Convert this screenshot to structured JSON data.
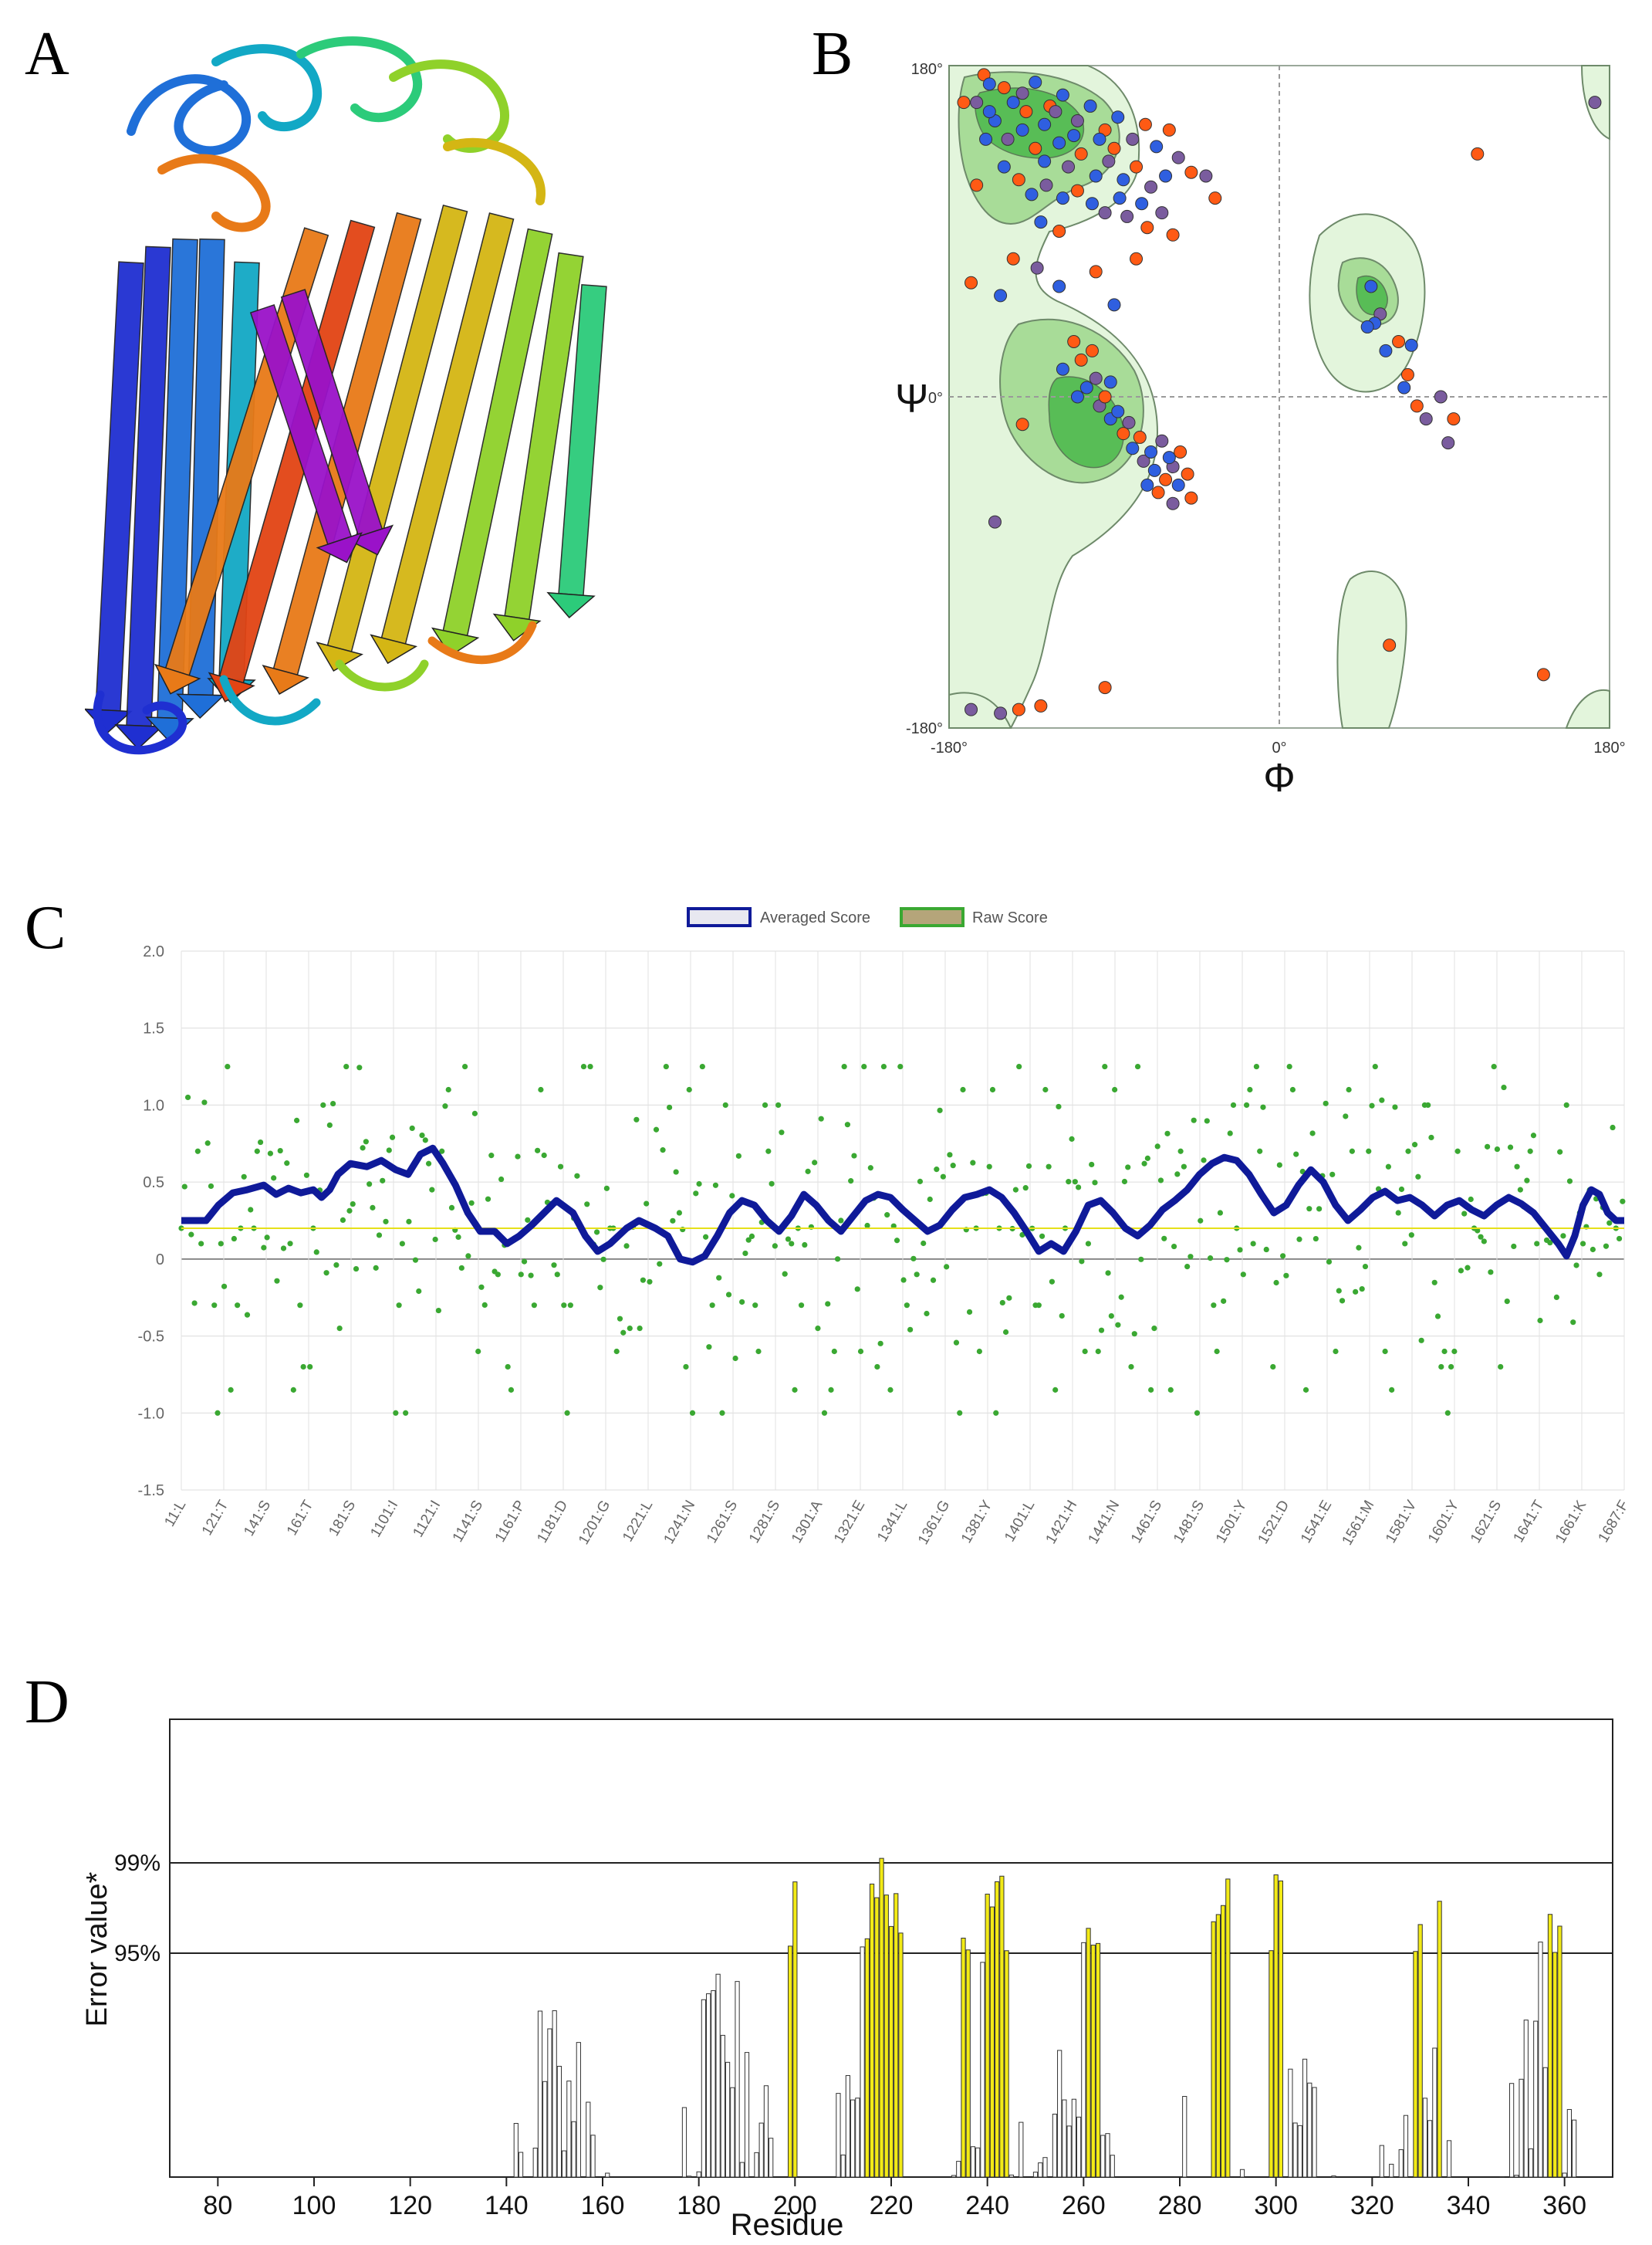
{
  "panels": {
    "a": {
      "letter": "A"
    },
    "b": {
      "letter": "B"
    },
    "c": {
      "letter": "C"
    },
    "d": {
      "letter": "D"
    }
  },
  "colors": {
    "helix_gradient": [
      "#1f2fd1",
      "#1f6fd8",
      "#12a8c5",
      "#2ccb7a",
      "#8fd12a",
      "#d4b614",
      "#e87a18",
      "#e24414",
      "#9a12c9"
    ],
    "rama_light": "#e3f5dc",
    "rama_mid": "#a8dc98",
    "rama_core": "#58bd56",
    "rama_edge": "#6e8a6a",
    "dot_blue": "#2f5fe0",
    "dot_orange": "#ff5a14",
    "dot_purple": "#7a5c9e",
    "avg_line": "#0f1a99",
    "raw_dot": "#3aa832",
    "threshold": "#e6e01a",
    "bar_normal": "#ffffff",
    "bar_highlight": "#f2ea16"
  },
  "ramachandran": {
    "x_tick_labels": [
      "-180°",
      "0°",
      "180°"
    ],
    "y_tick_labels": [
      "180°",
      "0°",
      "-180°"
    ],
    "x_symbol": "Φ",
    "y_symbol": "Ψ",
    "x_range": [
      -180,
      180
    ],
    "y_range": [
      -180,
      180
    ],
    "points": [
      {
        "phi": -161,
        "psi": 175,
        "c": "o"
      },
      {
        "phi": -158,
        "psi": 170,
        "c": "b"
      },
      {
        "phi": -150,
        "psi": 168,
        "c": "o"
      },
      {
        "phi": -145,
        "psi": 160,
        "c": "b"
      },
      {
        "phi": -140,
        "psi": 165,
        "c": "p"
      },
      {
        "phi": -133,
        "psi": 171,
        "c": "b"
      },
      {
        "phi": -125,
        "psi": 158,
        "c": "o"
      },
      {
        "phi": -118,
        "psi": 164,
        "c": "b"
      },
      {
        "phi": -110,
        "psi": 150,
        "c": "p"
      },
      {
        "phi": -103,
        "psi": 158,
        "c": "b"
      },
      {
        "phi": -95,
        "psi": 145,
        "c": "o"
      },
      {
        "phi": -88,
        "psi": 152,
        "c": "b"
      },
      {
        "phi": -80,
        "psi": 140,
        "c": "p"
      },
      {
        "phi": -73,
        "psi": 148,
        "c": "o"
      },
      {
        "phi": -67,
        "psi": 136,
        "c": "b"
      },
      {
        "phi": -60,
        "psi": 145,
        "c": "o"
      },
      {
        "phi": -55,
        "psi": 130,
        "c": "p"
      },
      {
        "phi": -48,
        "psi": 122,
        "c": "o"
      },
      {
        "phi": -155,
        "psi": 150,
        "c": "b"
      },
      {
        "phi": -148,
        "psi": 140,
        "c": "p"
      },
      {
        "phi": -140,
        "psi": 145,
        "c": "b"
      },
      {
        "phi": -133,
        "psi": 135,
        "c": "o"
      },
      {
        "phi": -128,
        "psi": 128,
        "c": "b"
      },
      {
        "phi": -120,
        "psi": 138,
        "c": "b"
      },
      {
        "phi": -115,
        "psi": 125,
        "c": "p"
      },
      {
        "phi": -108,
        "psi": 132,
        "c": "o"
      },
      {
        "phi": -100,
        "psi": 120,
        "c": "b"
      },
      {
        "phi": -93,
        "psi": 128,
        "c": "p"
      },
      {
        "phi": -85,
        "psi": 118,
        "c": "b"
      },
      {
        "phi": -78,
        "psi": 125,
        "c": "o"
      },
      {
        "phi": -70,
        "psi": 114,
        "c": "p"
      },
      {
        "phi": -62,
        "psi": 120,
        "c": "b"
      },
      {
        "phi": -150,
        "psi": 125,
        "c": "b"
      },
      {
        "phi": -142,
        "psi": 118,
        "c": "o"
      },
      {
        "phi": -135,
        "psi": 110,
        "c": "b"
      },
      {
        "phi": -127,
        "psi": 115,
        "c": "p"
      },
      {
        "phi": -118,
        "psi": 108,
        "c": "b"
      },
      {
        "phi": -110,
        "psi": 112,
        "c": "o"
      },
      {
        "phi": -102,
        "psi": 105,
        "c": "b"
      },
      {
        "phi": -95,
        "psi": 100,
        "c": "p"
      },
      {
        "phi": -87,
        "psi": 108,
        "c": "b"
      },
      {
        "phi": -160,
        "psi": 140,
        "c": "b"
      },
      {
        "phi": -165,
        "psi": 160,
        "c": "p"
      },
      {
        "phi": -158,
        "psi": 155,
        "c": "b"
      },
      {
        "phi": -138,
        "psi": 155,
        "c": "o"
      },
      {
        "phi": -128,
        "psi": 148,
        "c": "b"
      },
      {
        "phi": -122,
        "psi": 155,
        "c": "p"
      },
      {
        "phi": -112,
        "psi": 142,
        "c": "b"
      },
      {
        "phi": -98,
        "psi": 140,
        "c": "b"
      },
      {
        "phi": -90,
        "psi": 135,
        "c": "o"
      },
      {
        "phi": -83,
        "psi": 98,
        "c": "p"
      },
      {
        "phi": -75,
        "psi": 105,
        "c": "b"
      },
      {
        "phi": -130,
        "psi": 95,
        "c": "b"
      },
      {
        "phi": -120,
        "psi": 90,
        "c": "o"
      },
      {
        "phi": -72,
        "psi": 92,
        "c": "o"
      },
      {
        "phi": -64,
        "psi": 100,
        "c": "p"
      },
      {
        "phi": -58,
        "psi": 88,
        "c": "o"
      },
      {
        "phi": -40,
        "psi": 120,
        "c": "p"
      },
      {
        "phi": -35,
        "psi": 108,
        "c": "o"
      },
      {
        "phi": -172,
        "psi": 160,
        "c": "o"
      },
      {
        "phi": -165,
        "psi": 115,
        "c": "o"
      },
      {
        "phi": -145,
        "psi": 75,
        "c": "o"
      },
      {
        "phi": -132,
        "psi": 70,
        "c": "p"
      },
      {
        "phi": -100,
        "psi": 68,
        "c": "o"
      },
      {
        "phi": -120,
        "psi": 60,
        "c": "b"
      },
      {
        "phi": -90,
        "psi": 50,
        "c": "b"
      },
      {
        "phi": -78,
        "psi": 75,
        "c": "o"
      },
      {
        "phi": -168,
        "psi": 62,
        "c": "o"
      },
      {
        "phi": -152,
        "psi": 55,
        "c": "b"
      },
      {
        "phi": -108,
        "psi": 20,
        "c": "o"
      },
      {
        "phi": -105,
        "psi": 5,
        "c": "b"
      },
      {
        "phi": -98,
        "psi": -5,
        "c": "p"
      },
      {
        "phi": -92,
        "psi": -12,
        "c": "b"
      },
      {
        "phi": -85,
        "psi": -20,
        "c": "o"
      },
      {
        "phi": -80,
        "psi": -28,
        "c": "b"
      },
      {
        "phi": -74,
        "psi": -35,
        "c": "p"
      },
      {
        "phi": -68,
        "psi": -40,
        "c": "b"
      },
      {
        "phi": -62,
        "psi": -45,
        "c": "o"
      },
      {
        "phi": -58,
        "psi": -38,
        "c": "p"
      },
      {
        "phi": -55,
        "psi": -48,
        "c": "b"
      },
      {
        "phi": -50,
        "psi": -42,
        "c": "o"
      },
      {
        "phi": -100,
        "psi": 10,
        "c": "p"
      },
      {
        "phi": -95,
        "psi": 0,
        "c": "o"
      },
      {
        "phi": -88,
        "psi": -8,
        "c": "b"
      },
      {
        "phi": -82,
        "psi": -14,
        "c": "p"
      },
      {
        "phi": -76,
        "psi": -22,
        "c": "o"
      },
      {
        "phi": -70,
        "psi": -30,
        "c": "b"
      },
      {
        "phi": -64,
        "psi": -24,
        "c": "p"
      },
      {
        "phi": -60,
        "psi": -33,
        "c": "b"
      },
      {
        "phi": -54,
        "psi": -30,
        "c": "o"
      },
      {
        "phi": -112,
        "psi": 30,
        "c": "o"
      },
      {
        "phi": -102,
        "psi": 25,
        "c": "o"
      },
      {
        "phi": -92,
        "psi": 8,
        "c": "b"
      },
      {
        "phi": -110,
        "psi": 0,
        "c": "b"
      },
      {
        "phi": -118,
        "psi": 15,
        "c": "b"
      },
      {
        "phi": -66,
        "psi": -52,
        "c": "o"
      },
      {
        "phi": -58,
        "psi": -58,
        "c": "p"
      },
      {
        "phi": -72,
        "psi": -48,
        "c": "b"
      },
      {
        "phi": -48,
        "psi": -55,
        "c": "o"
      },
      {
        "phi": -140,
        "psi": -15,
        "c": "o"
      },
      {
        "phi": -155,
        "psi": -68,
        "c": "p"
      },
      {
        "phi": 50,
        "psi": 60,
        "c": "b"
      },
      {
        "phi": 55,
        "psi": 45,
        "c": "p"
      },
      {
        "phi": 52,
        "psi": 40,
        "c": "b"
      },
      {
        "phi": 48,
        "psi": 38,
        "c": "b"
      },
      {
        "phi": 58,
        "psi": 25,
        "c": "b"
      },
      {
        "phi": 65,
        "psi": 30,
        "c": "o"
      },
      {
        "phi": 72,
        "psi": 28,
        "c": "b"
      },
      {
        "phi": 70,
        "psi": 12,
        "c": "o"
      },
      {
        "phi": 68,
        "psi": 5,
        "c": "b"
      },
      {
        "phi": 88,
        "psi": 0,
        "c": "p"
      },
      {
        "phi": 75,
        "psi": -5,
        "c": "o"
      },
      {
        "phi": 80,
        "psi": -12,
        "c": "p"
      },
      {
        "phi": 95,
        "psi": -12,
        "c": "o"
      },
      {
        "phi": 92,
        "psi": -25,
        "c": "p"
      },
      {
        "phi": 108,
        "psi": 132,
        "c": "o"
      },
      {
        "phi": 172,
        "psi": 160,
        "c": "p"
      },
      {
        "phi": 60,
        "psi": -135,
        "c": "o"
      },
      {
        "phi": 144,
        "psi": -151,
        "c": "o"
      },
      {
        "phi": -168,
        "psi": -170,
        "c": "p"
      },
      {
        "phi": -152,
        "psi": -172,
        "c": "p"
      },
      {
        "phi": -142,
        "psi": -170,
        "c": "o"
      },
      {
        "phi": -130,
        "psi": -168,
        "c": "o"
      },
      {
        "phi": -95,
        "psi": -158,
        "c": "o"
      }
    ]
  },
  "hydropathy": {
    "legend": [
      "Averaged Score",
      "Raw Score"
    ],
    "y_ticks": [
      "2.0",
      "1.5",
      "1.0",
      "0.5",
      "0",
      "-0.5",
      "-1.0",
      "-1.5"
    ],
    "y_range": [
      -1.5,
      2.0
    ],
    "threshold_value": 0.2,
    "x_labels": [
      "11:L",
      "121:T",
      "141:S",
      "161:T",
      "181:S",
      "1101:I",
      "1121:I",
      "1141:S",
      "1161:P",
      "1181:D",
      "1201:G",
      "1221:L",
      "1241:N",
      "1261:S",
      "1281:S",
      "1301:A",
      "1321:E",
      "1341:L",
      "1361:G",
      "1381:Y",
      "1401:L",
      "1421:H",
      "1441:N",
      "1461:S",
      "1481:S",
      "1501:Y",
      "1521:D",
      "1541:E",
      "1561:M",
      "1581:V",
      "1601:Y",
      "1621:S",
      "1641:T",
      "1661:K",
      "1687:F"
    ],
    "n_residues": 687,
    "avg_anchors": [
      [
        0,
        0.25
      ],
      [
        12,
        0.25
      ],
      [
        18,
        0.35
      ],
      [
        25,
        0.43
      ],
      [
        32,
        0.45
      ],
      [
        40,
        0.48
      ],
      [
        46,
        0.42
      ],
      [
        52,
        0.46
      ],
      [
        58,
        0.43
      ],
      [
        64,
        0.45
      ],
      [
        68,
        0.4
      ],
      [
        72,
        0.45
      ],
      [
        76,
        0.55
      ],
      [
        82,
        0.62
      ],
      [
        90,
        0.6
      ],
      [
        97,
        0.64
      ],
      [
        104,
        0.58
      ],
      [
        110,
        0.55
      ],
      [
        116,
        0.68
      ],
      [
        122,
        0.72
      ],
      [
        127,
        0.62
      ],
      [
        133,
        0.48
      ],
      [
        139,
        0.3
      ],
      [
        145,
        0.18
      ],
      [
        152,
        0.18
      ],
      [
        158,
        0.1
      ],
      [
        164,
        0.15
      ],
      [
        170,
        0.22
      ],
      [
        176,
        0.3
      ],
      [
        182,
        0.38
      ],
      [
        190,
        0.3
      ],
      [
        196,
        0.15
      ],
      [
        202,
        0.05
      ],
      [
        208,
        0.1
      ],
      [
        216,
        0.2
      ],
      [
        222,
        0.25
      ],
      [
        230,
        0.2
      ],
      [
        236,
        0.15
      ],
      [
        242,
        0.0
      ],
      [
        248,
        -0.02
      ],
      [
        254,
        0.02
      ],
      [
        260,
        0.15
      ],
      [
        266,
        0.3
      ],
      [
        272,
        0.38
      ],
      [
        278,
        0.35
      ],
      [
        284,
        0.25
      ],
      [
        290,
        0.18
      ],
      [
        296,
        0.28
      ],
      [
        302,
        0.42
      ],
      [
        308,
        0.35
      ],
      [
        314,
        0.25
      ],
      [
        320,
        0.18
      ],
      [
        326,
        0.28
      ],
      [
        332,
        0.38
      ],
      [
        338,
        0.42
      ],
      [
        344,
        0.4
      ],
      [
        350,
        0.32
      ],
      [
        356,
        0.25
      ],
      [
        362,
        0.18
      ],
      [
        368,
        0.22
      ],
      [
        374,
        0.32
      ],
      [
        380,
        0.4
      ],
      [
        386,
        0.42
      ],
      [
        392,
        0.45
      ],
      [
        398,
        0.4
      ],
      [
        404,
        0.3
      ],
      [
        410,
        0.18
      ],
      [
        416,
        0.05
      ],
      [
        422,
        0.1
      ],
      [
        428,
        0.05
      ],
      [
        434,
        0.18
      ],
      [
        440,
        0.35
      ],
      [
        446,
        0.38
      ],
      [
        452,
        0.3
      ],
      [
        458,
        0.2
      ],
      [
        464,
        0.15
      ],
      [
        470,
        0.22
      ],
      [
        476,
        0.32
      ],
      [
        482,
        0.38
      ],
      [
        488,
        0.45
      ],
      [
        494,
        0.55
      ],
      [
        500,
        0.62
      ],
      [
        506,
        0.66
      ],
      [
        512,
        0.64
      ],
      [
        518,
        0.55
      ],
      [
        524,
        0.42
      ],
      [
        530,
        0.3
      ],
      [
        536,
        0.35
      ],
      [
        542,
        0.48
      ],
      [
        548,
        0.58
      ],
      [
        554,
        0.5
      ],
      [
        560,
        0.35
      ],
      [
        566,
        0.25
      ],
      [
        572,
        0.32
      ],
      [
        578,
        0.4
      ],
      [
        584,
        0.44
      ],
      [
        590,
        0.38
      ],
      [
        596,
        0.4
      ],
      [
        602,
        0.35
      ],
      [
        608,
        0.28
      ],
      [
        614,
        0.35
      ],
      [
        620,
        0.38
      ],
      [
        626,
        0.32
      ],
      [
        632,
        0.28
      ],
      [
        638,
        0.35
      ],
      [
        644,
        0.4
      ],
      [
        650,
        0.36
      ],
      [
        656,
        0.3
      ],
      [
        662,
        0.2
      ],
      [
        668,
        0.1
      ],
      [
        672,
        0.02
      ],
      [
        676,
        0.15
      ],
      [
        680,
        0.35
      ],
      [
        684,
        0.45
      ],
      [
        688,
        0.42
      ],
      [
        692,
        0.3
      ],
      [
        696,
        0.25
      ],
      [
        700,
        0.25
      ]
    ]
  },
  "errat": {
    "y_axis_label": "Error value*",
    "lines": [
      "99%",
      "95%"
    ],
    "x_axis_label": "Residue",
    "x_ticks": [
      "80",
      "100",
      "120",
      "140",
      "160",
      "180",
      "200",
      "220",
      "240",
      "260",
      "280",
      "300",
      "320",
      "340",
      "360"
    ],
    "x_range": [
      70,
      370
    ],
    "residue_start": 71,
    "residue_end": 368,
    "highlight_residues": [
      199,
      200,
      215,
      216,
      217,
      218,
      219,
      220,
      221,
      222,
      235,
      236,
      240,
      241,
      242,
      243,
      244,
      261,
      262,
      263,
      287,
      288,
      289,
      290,
      299,
      300,
      301,
      329,
      330,
      334,
      357,
      358,
      359
    ]
  }
}
